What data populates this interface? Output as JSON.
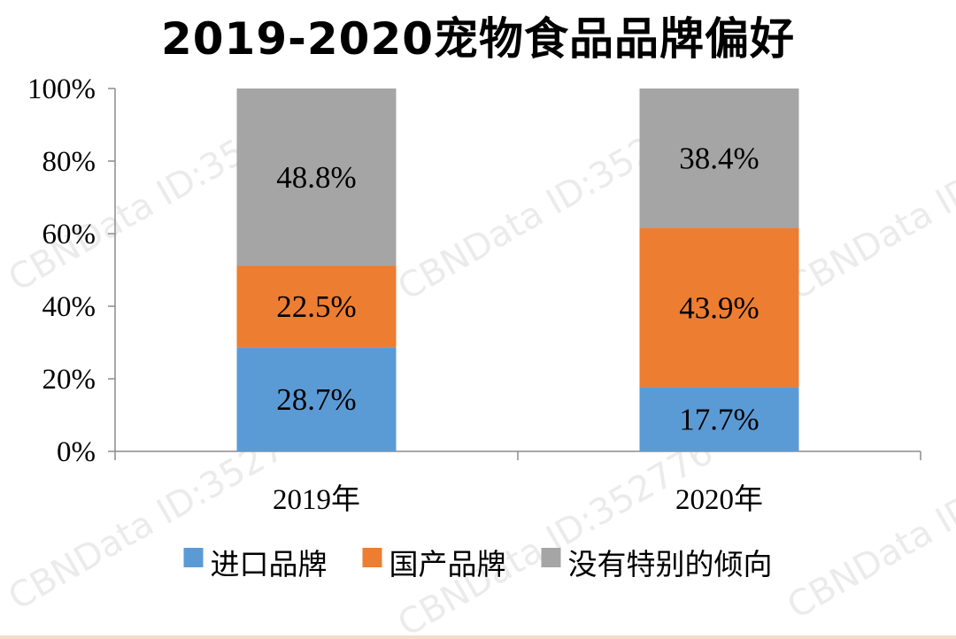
{
  "title": "2019-2020宠物食品品牌偏好",
  "watermark": "CBNData ID:352776",
  "colors": {
    "进口品牌": "#5b9bd5",
    "国产品牌": "#ed7d31",
    "没有特别的倾向": "#a5a5a5",
    "axis": "#8c8c8c"
  },
  "chart_data": {
    "type": "bar",
    "stacked": true,
    "categories": [
      "2019年",
      "2020年"
    ],
    "series": [
      {
        "name": "进口品牌",
        "values": [
          28.7,
          17.7
        ],
        "labels": [
          "28.7%",
          "17.7%"
        ]
      },
      {
        "name": "国产品牌",
        "values": [
          22.5,
          43.9
        ],
        "labels": [
          "22.5%",
          "43.9%"
        ]
      },
      {
        "name": "没有特别的倾向",
        "values": [
          48.8,
          38.4
        ],
        "labels": [
          "48.8%",
          "38.4%"
        ]
      }
    ],
    "ylim": [
      0,
      100
    ],
    "yticks": [
      0,
      20,
      40,
      60,
      80,
      100
    ],
    "ytick_labels": [
      "0%",
      "20%",
      "40%",
      "60%",
      "80%",
      "100%"
    ],
    "grid": false,
    "legend_position": "bottom"
  }
}
